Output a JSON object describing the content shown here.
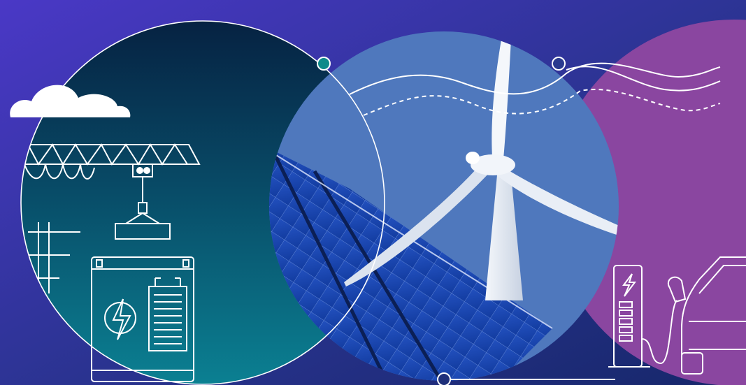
{
  "scene": {
    "panels": [
      {
        "name": "battery-storage-panel",
        "theme": "energy storage and crane",
        "colors": [
          "#062a4a",
          "#0a7a8e"
        ]
      },
      {
        "name": "renewables-panel",
        "theme": "wind turbine and solar panels",
        "colors": [
          "#4f78bd",
          "#1e4fb0"
        ]
      },
      {
        "name": "ev-charging-panel",
        "theme": "electric vehicle charging",
        "colors": [
          "#8a46a0",
          "#8b48a2"
        ]
      }
    ],
    "background": [
      "#4a38c6",
      "#1a2a6e"
    ],
    "accent": "#0e8a8a",
    "icons": [
      "cloud-icon",
      "crane-icon",
      "battery-icon",
      "lightning-bolt-icon",
      "power-pole-icon",
      "wind-turbine-icon",
      "solar-panel-icon",
      "ev-charger-icon",
      "car-icon",
      "wave-lines-icon"
    ]
  }
}
